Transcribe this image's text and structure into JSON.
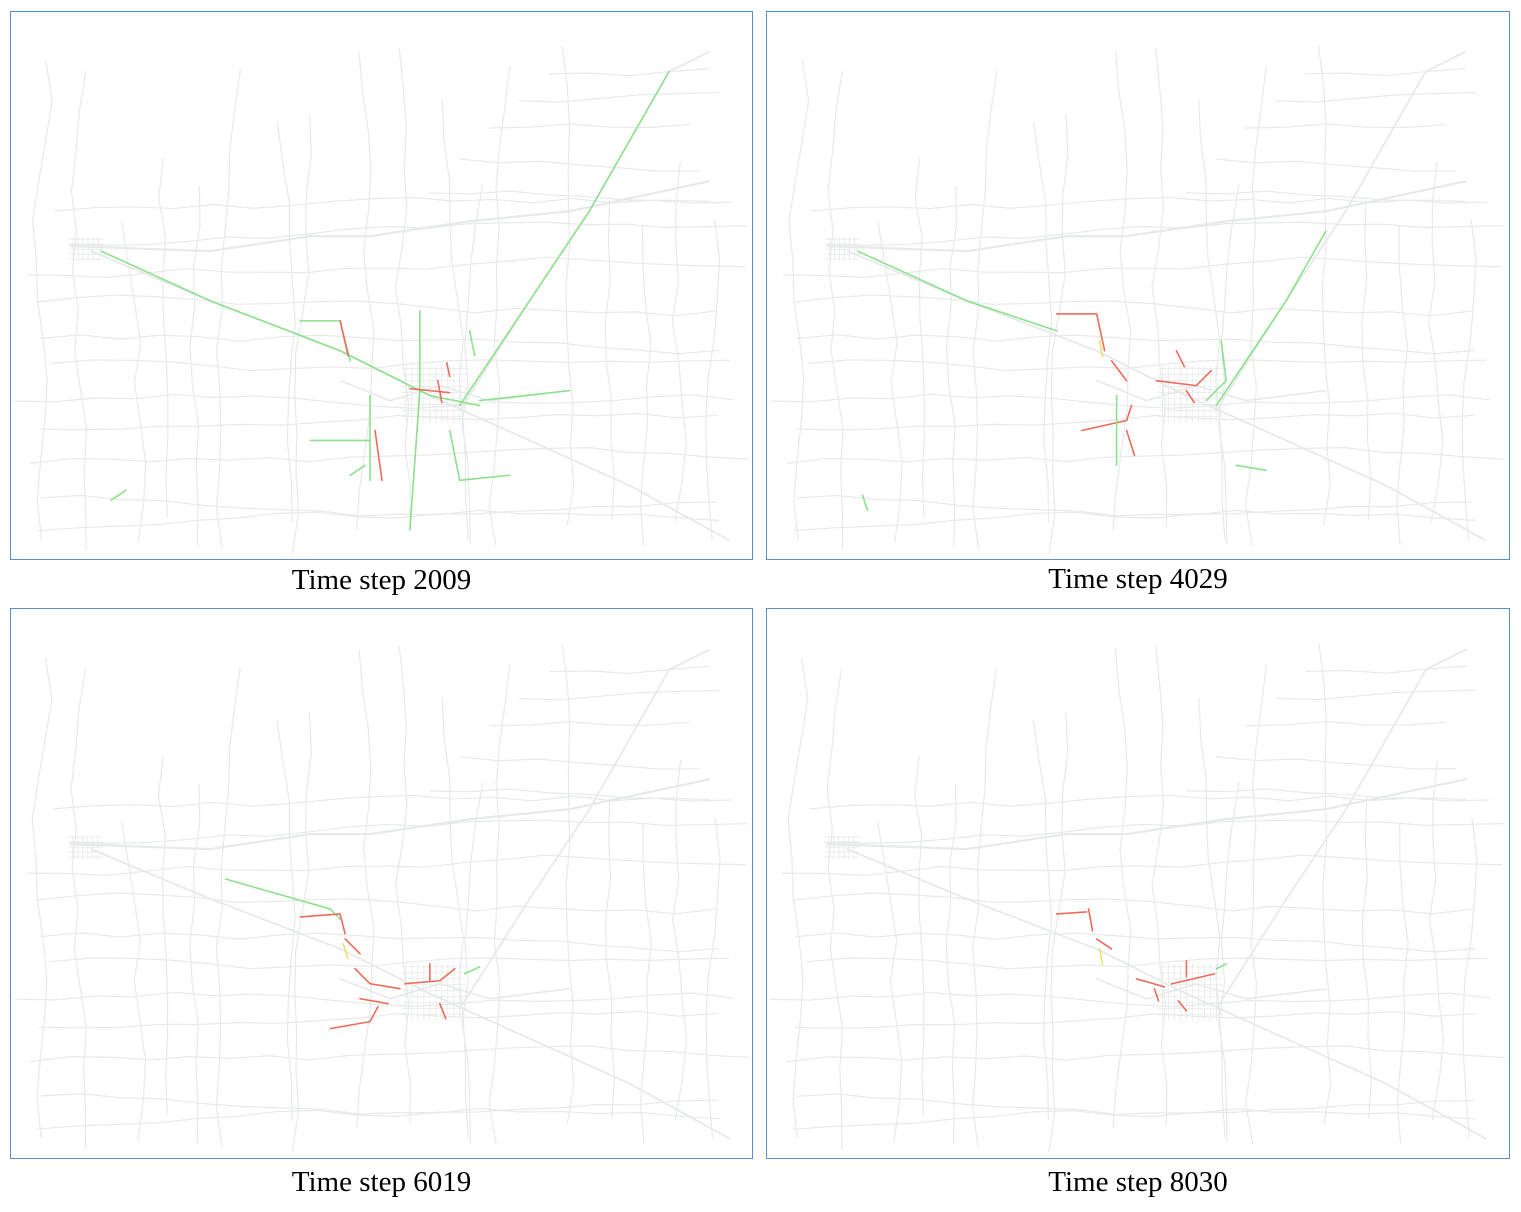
{
  "panels": [
    {
      "caption": "Time step 2009"
    },
    {
      "caption": "Time step 4029"
    },
    {
      "caption": "Time step 6019"
    },
    {
      "caption": "Time step 8030"
    }
  ],
  "colors": {
    "frame": "#5b8fc7",
    "road_base": "#e6e9ea",
    "flow_free": "#8de08d",
    "flow_slow": "#e8e070",
    "flow_congested": "#ef6a5a"
  }
}
